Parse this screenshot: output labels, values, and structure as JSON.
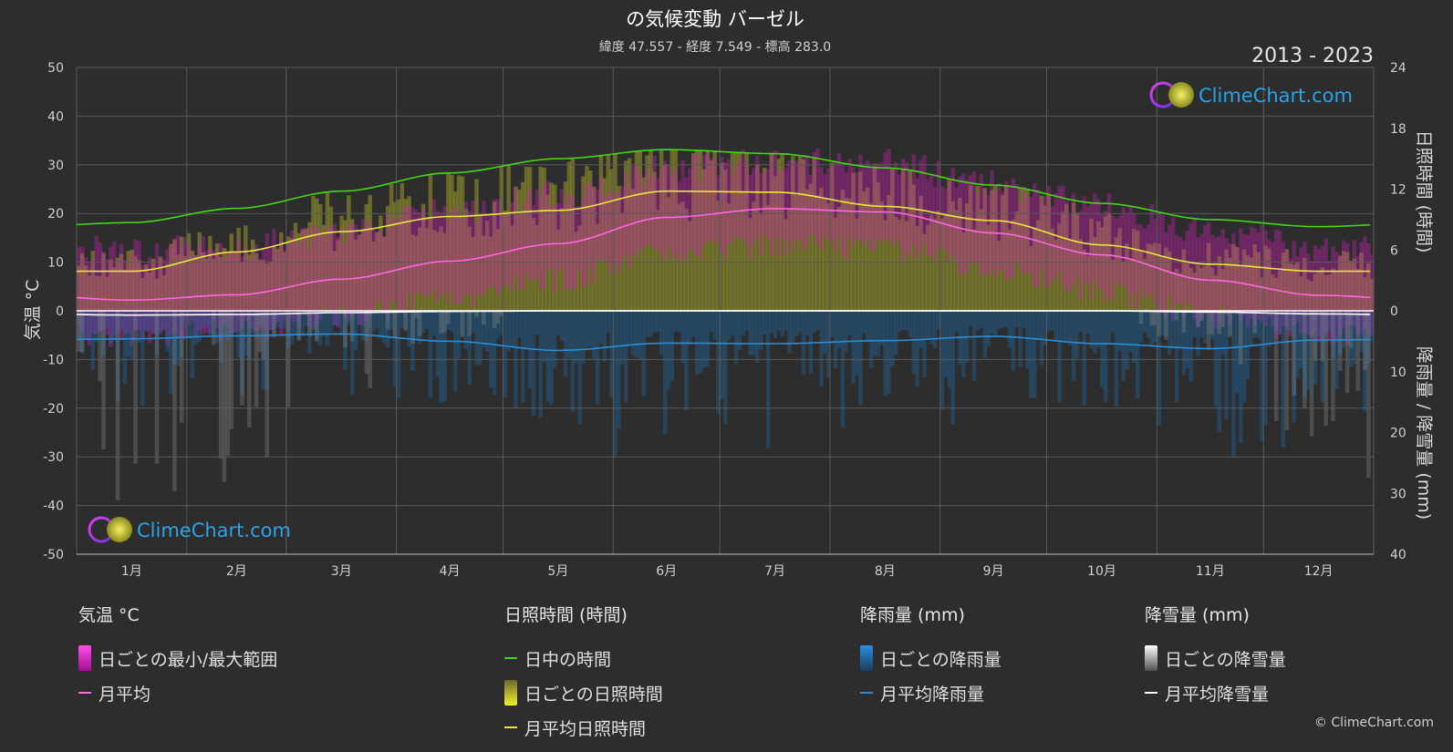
{
  "title": "の気候変動 バーゼル",
  "subtitle": "緯度 47.557 - 経度 7.549 - 標高 283.0",
  "years": "2013 - 2023",
  "brand": "ClimeChart.com",
  "copyright": "© ClimeChart.com",
  "colors": {
    "background": "#2d2d2d",
    "daylight": "#44d814",
    "sunshine_avg": "#e8e83a",
    "temp_avg": "#ff66e0",
    "rain_avg": "#2a8fd8",
    "snow_avg": "#ffffff",
    "temp_range": "#d020b8",
    "sunshine_daily": "#b8b828",
    "rain_daily": "#1e6fb0",
    "snow_daily": "#8a8a8a",
    "brand_text": "#2aa3e8"
  },
  "chart_data": {
    "type": "line",
    "categories": [
      "1月",
      "2月",
      "3月",
      "4月",
      "5月",
      "6月",
      "7月",
      "8月",
      "9月",
      "10月",
      "11月",
      "12月"
    ],
    "y_left": {
      "label": "気温 °C",
      "range": [
        -50,
        50
      ],
      "ticks": [
        50,
        40,
        30,
        20,
        10,
        0,
        -10,
        -20,
        -30,
        -40,
        -50
      ]
    },
    "y_right_top": {
      "label": "日照時間 (時間)",
      "range": [
        0,
        24
      ],
      "ticks": [
        24,
        18,
        12,
        6,
        0
      ]
    },
    "y_right_bottom": {
      "label": "降雨量 / 降雪量 (mm)",
      "range": [
        0,
        40
      ],
      "ticks": [
        10,
        20,
        30,
        40
      ]
    },
    "grid": true,
    "series": [
      {
        "name": "日中の時間",
        "axis": "sunshine_hours",
        "values": [
          8.7,
          10.1,
          11.8,
          13.6,
          15.0,
          15.9,
          15.5,
          14.1,
          12.4,
          10.6,
          9.0,
          8.3
        ]
      },
      {
        "name": "月平均日照時間",
        "axis": "sunshine_hours",
        "values": [
          3.9,
          5.8,
          7.8,
          9.3,
          9.9,
          11.8,
          11.7,
          10.3,
          8.9,
          6.5,
          4.6,
          3.9
        ]
      },
      {
        "name": "月平均",
        "axis": "temperature_c",
        "values": [
          2.2,
          3.3,
          6.5,
          10.2,
          13.8,
          19.2,
          21.0,
          20.3,
          16.0,
          11.5,
          6.3,
          3.2
        ]
      },
      {
        "name": "月平均降雨量",
        "axis": "precipitation_mm",
        "values": [
          4.6,
          4.1,
          3.8,
          5.0,
          6.5,
          5.3,
          5.4,
          4.9,
          4.2,
          5.4,
          6.2,
          4.8
        ]
      },
      {
        "name": "月平均降雪量",
        "axis": "precipitation_mm",
        "values": [
          0.7,
          0.6,
          0.3,
          0.1,
          0.0,
          0.0,
          0.0,
          0.0,
          0.0,
          0.0,
          0.2,
          0.5
        ]
      }
    ]
  },
  "legend": {
    "temperature": {
      "heading": "気温 °C",
      "range_label": "日ごとの最小/最大範囲",
      "avg_label": "月平均"
    },
    "sunshine": {
      "heading": "日照時間 (時間)",
      "daylight_label": "日中の時間",
      "daily_label": "日ごとの日照時間",
      "avg_label": "月平均日照時間"
    },
    "rain": {
      "heading": "降雨量 (mm)",
      "daily_label": "日ごとの降雨量",
      "avg_label": "月平均降雨量"
    },
    "snow": {
      "heading": "降雪量 (mm)",
      "daily_label": "日ごとの降雪量",
      "avg_label": "月平均降雪量"
    }
  }
}
